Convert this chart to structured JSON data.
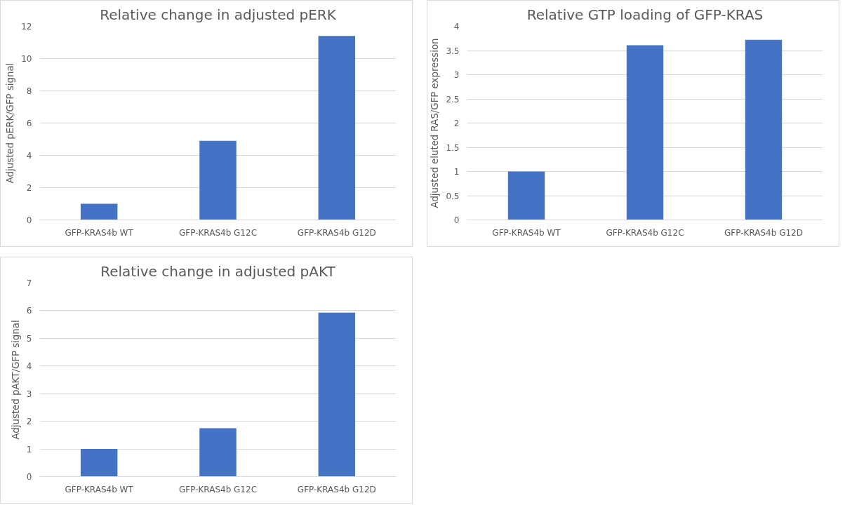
{
  "chart_data": [
    {
      "type": "bar",
      "title": "Relative change in adjusted pERK",
      "ylabel": "Adjusted pERK/GFP signal",
      "categories": [
        "GFP-KRAS4b WT",
        "GFP-KRAS4b G12C",
        "GFP-KRAS4b G12D"
      ],
      "values": [
        1,
        4.9,
        11.4
      ],
      "color": "#4472c4",
      "ylim": [
        0,
        12
      ],
      "yticks": [
        0,
        2,
        4,
        6,
        8,
        10,
        12
      ],
      "grid": "y"
    },
    {
      "type": "bar",
      "title": "Relative GTP loading of GFP-KRAS",
      "ylabel": "Adjusted eluted RAS/GFP expression",
      "categories": [
        "GFP-KRAS4b WT",
        "GFP-KRAS4b G12C",
        "GFP-KRAS4b G12D"
      ],
      "values": [
        1,
        3.61,
        3.72
      ],
      "color": "#4472c4",
      "ylim": [
        0,
        4
      ],
      "yticks": [
        0,
        0.5,
        1,
        1.5,
        2,
        2.5,
        3,
        3.5,
        4
      ],
      "grid": "y"
    },
    {
      "type": "bar",
      "title": "Relative change in adjusted pAKT",
      "ylabel": "Adjusted pAKT/GFP signal",
      "categories": [
        "GFP-KRAS4b WT",
        "GFP-KRAS4b G12C",
        "GFP-KRAS4b G12D"
      ],
      "values": [
        1,
        1.75,
        5.93
      ],
      "color": "#4472c4",
      "ylim": [
        0,
        7
      ],
      "yticks": [
        0,
        1,
        2,
        3,
        4,
        5,
        6,
        7
      ],
      "grid": "y"
    }
  ]
}
